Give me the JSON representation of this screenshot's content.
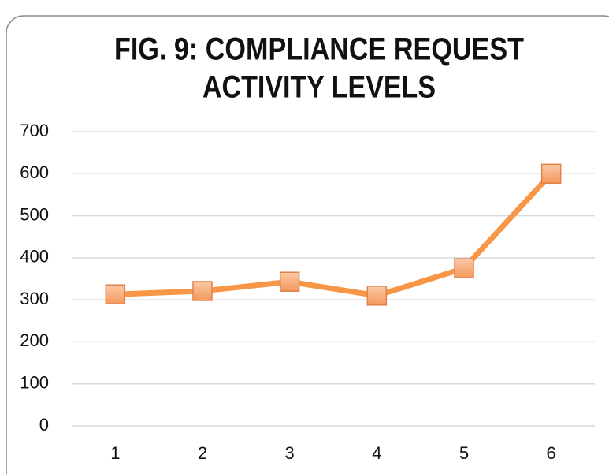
{
  "chart_data": {
    "type": "line",
    "title": [
      "FIG. 9: COMPLIANCE REQUEST",
      "ACTIVITY LEVELS"
    ],
    "categories": [
      "1",
      "2",
      "3",
      "4",
      "5",
      "6"
    ],
    "series": [
      {
        "color": "#f79646",
        "values": [
          313,
          321,
          343,
          310,
          375,
          600
        ]
      }
    ],
    "ylim": [
      0,
      700
    ],
    "yticks": [
      0,
      100,
      200,
      300,
      400,
      500,
      600,
      700
    ],
    "grid": true
  }
}
